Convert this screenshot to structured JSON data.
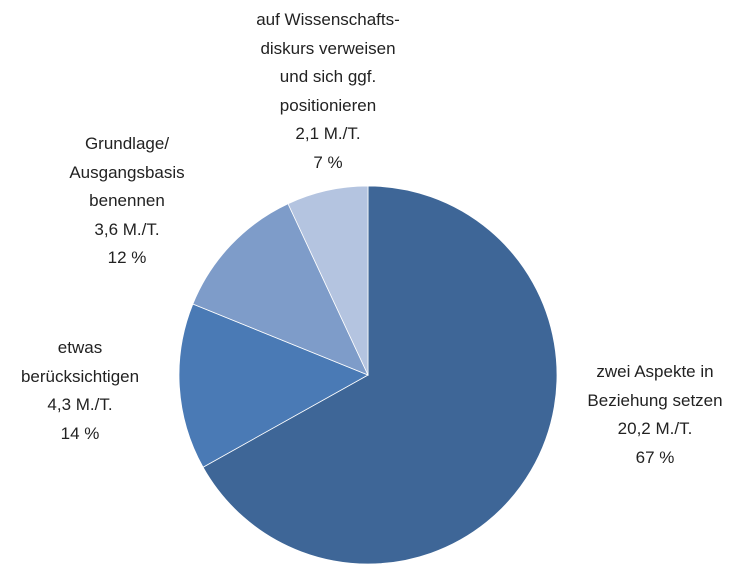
{
  "chart_data": {
    "type": "pie",
    "categories": [
      "zwei Aspekte in\nBeziehung setzen",
      "etwas\nberücksichtigen",
      "Grundlage/\nAusgangsbasis\nbenennen",
      "auf Wissenschafts-\ndiskurs verweisen\nund sich ggf.\npositionieren"
    ],
    "values": [
      20.2,
      4.3,
      3.6,
      2.1
    ],
    "value_labels": [
      "20,2 M./T.",
      "4,3 M./T.",
      "3,6 M./T.",
      "2,1 M./T."
    ],
    "percent_values": [
      67,
      14,
      12,
      7
    ],
    "percent_labels": [
      "67 %",
      "14 %",
      "12 %",
      "7 %"
    ],
    "colors": [
      "#3e6697",
      "#4a7ab5",
      "#7e9cc9",
      "#b4c4e0"
    ]
  }
}
